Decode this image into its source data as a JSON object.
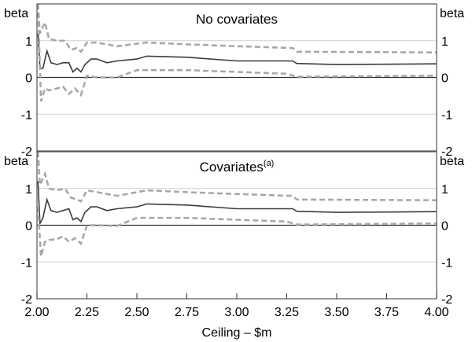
{
  "chart_data": [
    {
      "type": "line",
      "title": "No covariates",
      "title_sup": "",
      "ylabel_left": "beta",
      "ylabel_right": "beta",
      "ylim": [
        -2,
        2
      ],
      "yticks": [
        "-2",
        "-1",
        "0",
        "1"
      ],
      "xlim": [
        2,
        4
      ],
      "series": [
        {
          "name": "estimate",
          "style": "solid",
          "x": [
            2.005,
            2.015,
            2.03,
            2.05,
            2.07,
            2.1,
            2.13,
            2.16,
            2.18,
            2.2,
            2.22,
            2.24,
            2.27,
            2.3,
            2.35,
            2.4,
            2.5,
            2.55,
            2.75,
            3.0,
            3.28,
            3.3,
            3.5,
            4.0
          ],
          "y": [
            1.2,
            0.25,
            0.25,
            0.72,
            0.4,
            0.35,
            0.4,
            0.4,
            0.15,
            0.25,
            0.15,
            0.35,
            0.5,
            0.5,
            0.4,
            0.45,
            0.5,
            0.58,
            0.55,
            0.45,
            0.45,
            0.38,
            0.35,
            0.37
          ]
        },
        {
          "name": "upper bound",
          "style": "dashed",
          "x": [
            2.005,
            2.015,
            2.04,
            2.06,
            2.1,
            2.14,
            2.17,
            2.2,
            2.22,
            2.25,
            2.3,
            2.4,
            2.55,
            2.75,
            3.0,
            3.28,
            3.3,
            4.0
          ],
          "y": [
            2.0,
            1.2,
            1.5,
            1.05,
            1.0,
            1.0,
            0.75,
            0.8,
            0.7,
            0.95,
            0.95,
            0.85,
            0.95,
            0.9,
            0.85,
            0.8,
            0.7,
            0.68
          ]
        },
        {
          "name": "lower bound",
          "style": "dashed",
          "x": [
            2.005,
            2.02,
            2.04,
            2.06,
            2.1,
            2.13,
            2.16,
            2.19,
            2.22,
            2.25,
            2.3,
            2.4,
            2.5,
            2.55,
            2.75,
            3.0,
            3.25,
            3.3,
            4.0
          ],
          "y": [
            2.0,
            -0.65,
            -0.3,
            -0.35,
            -0.3,
            -0.25,
            -0.45,
            -0.3,
            -0.48,
            0.05,
            0.0,
            0.0,
            0.2,
            0.2,
            0.2,
            0.15,
            0.1,
            0.02,
            0.05
          ]
        }
      ]
    },
    {
      "type": "line",
      "title": "Covariates",
      "title_sup": "(a)",
      "ylabel_left": "beta",
      "ylabel_right": "beta",
      "ylim": [
        -2,
        2
      ],
      "yticks": [
        "-2",
        "-1",
        "0",
        "1"
      ],
      "xlim": [
        2,
        4
      ],
      "series": [
        {
          "name": "estimate",
          "style": "solid",
          "x": [
            2.005,
            2.015,
            2.03,
            2.05,
            2.07,
            2.1,
            2.13,
            2.16,
            2.18,
            2.2,
            2.22,
            2.24,
            2.27,
            2.3,
            2.35,
            2.4,
            2.5,
            2.55,
            2.75,
            3.0,
            3.28,
            3.3,
            3.5,
            4.0
          ],
          "y": [
            1.2,
            0.05,
            0.2,
            0.7,
            0.4,
            0.35,
            0.4,
            0.45,
            0.15,
            0.2,
            0.1,
            0.35,
            0.5,
            0.5,
            0.4,
            0.45,
            0.5,
            0.58,
            0.55,
            0.45,
            0.45,
            0.38,
            0.35,
            0.37
          ]
        },
        {
          "name": "upper bound",
          "style": "dashed",
          "x": [
            2.005,
            2.015,
            2.04,
            2.06,
            2.1,
            2.14,
            2.17,
            2.2,
            2.22,
            2.25,
            2.3,
            2.4,
            2.55,
            2.75,
            3.0,
            3.28,
            3.3,
            4.0
          ],
          "y": [
            2.0,
            1.1,
            1.4,
            1.0,
            0.95,
            1.0,
            0.75,
            0.7,
            0.65,
            0.95,
            0.9,
            0.8,
            0.95,
            0.9,
            0.85,
            0.8,
            0.7,
            0.68
          ]
        },
        {
          "name": "lower bound",
          "style": "dashed",
          "x": [
            2.005,
            2.02,
            2.04,
            2.06,
            2.1,
            2.13,
            2.16,
            2.19,
            2.22,
            2.25,
            2.3,
            2.4,
            2.5,
            2.55,
            2.75,
            3.0,
            3.25,
            3.3,
            4.0
          ],
          "y": [
            0.5,
            -0.85,
            -0.45,
            -0.4,
            -0.38,
            -0.3,
            -0.45,
            -0.35,
            -0.5,
            0.0,
            0.0,
            -0.02,
            0.2,
            0.2,
            0.2,
            0.15,
            0.1,
            0.02,
            0.05
          ]
        }
      ]
    }
  ],
  "xaxis": {
    "label": "Ceiling – $m",
    "ticks": [
      "2.00",
      "2.25",
      "2.50",
      "2.75",
      "3.00",
      "3.25",
      "3.50",
      "3.75",
      "4.00"
    ],
    "values": [
      2,
      2.25,
      2.5,
      2.75,
      3,
      3.25,
      3.5,
      3.75,
      4
    ]
  },
  "colors": {
    "estimate": "#3c3c3c",
    "bounds": "#a6a6a6",
    "grid": "#d0d0d0",
    "frame": "#555555"
  }
}
